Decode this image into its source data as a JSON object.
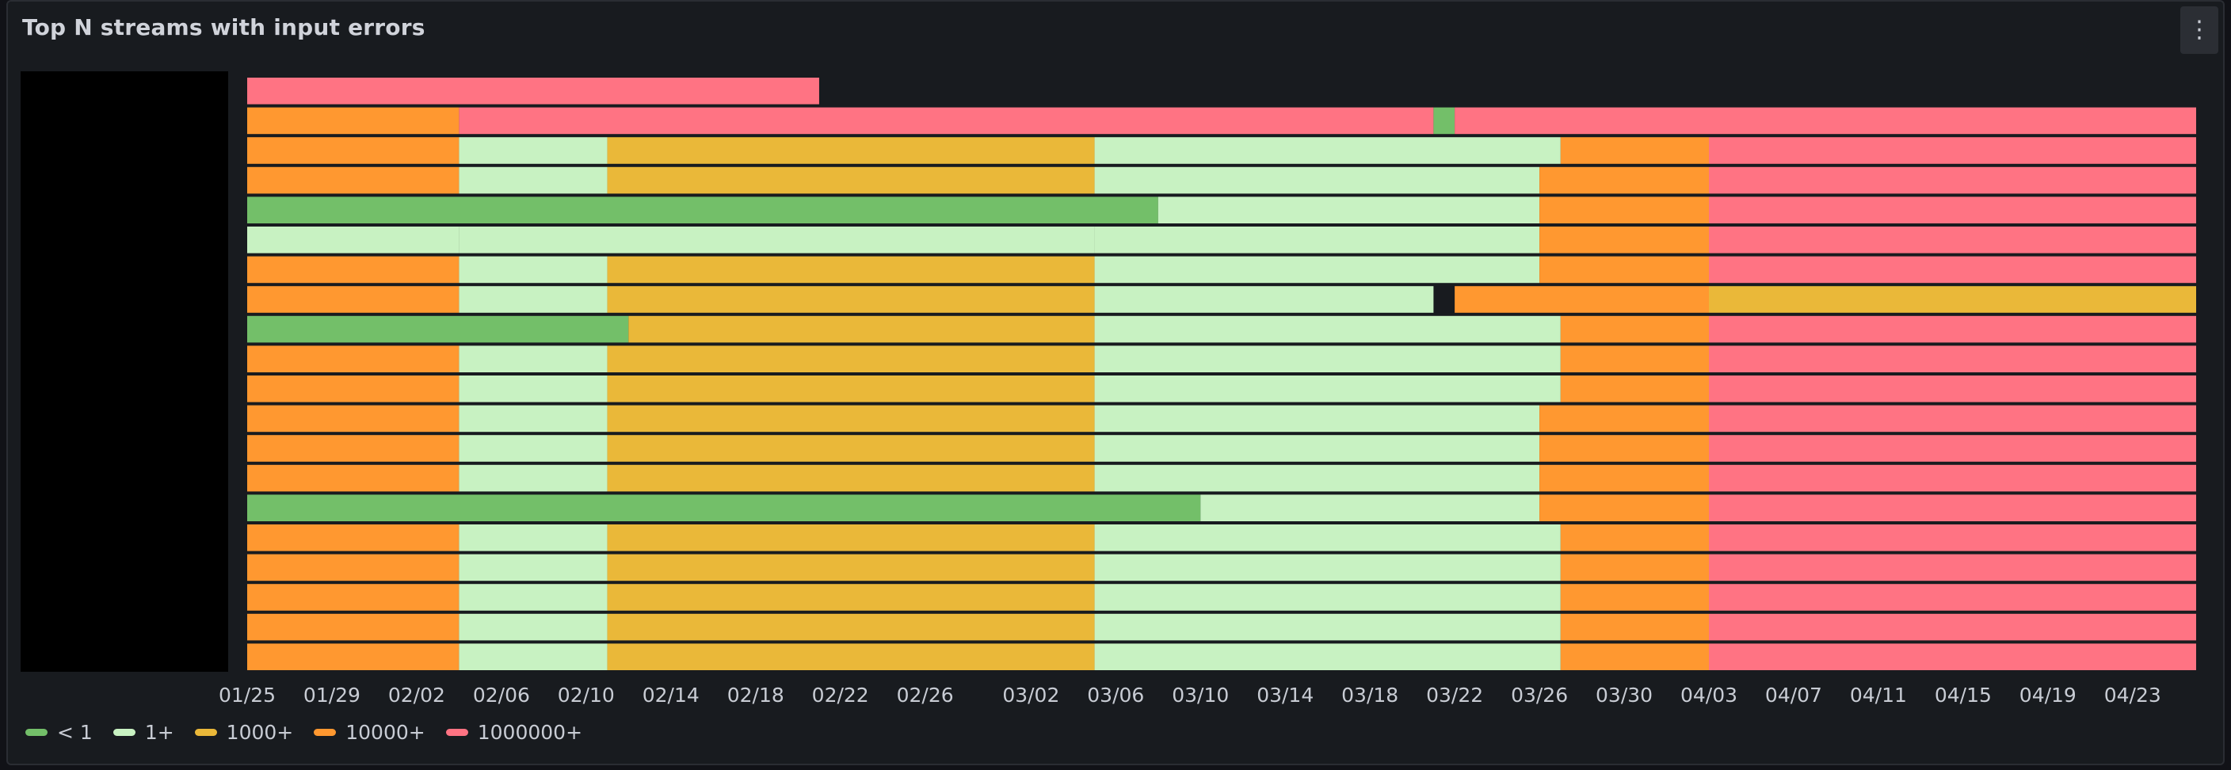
{
  "panel": {
    "title": "Top N streams with input errors",
    "menu_icon": "kebab-menu-icon"
  },
  "chart_data": {
    "type": "heatmap",
    "title": "Top N streams with input errors",
    "xlabel": "",
    "ylabel": "",
    "x_ticks": [
      "01/25",
      "01/29",
      "02/02",
      "02/06",
      "02/10",
      "02/14",
      "02/18",
      "02/22",
      "02/26",
      "03/02",
      "03/06",
      "03/10",
      "03/14",
      "03/18",
      "03/22",
      "03/26",
      "03/30",
      "04/03",
      "04/07",
      "04/11",
      "04/15",
      "04/19",
      "04/23"
    ],
    "x_range": [
      "01/25",
      "04/26"
    ],
    "row_count": 20,
    "row_labels_redacted": true,
    "legend_position": "bottom-left",
    "grid": false,
    "categories": [
      {
        "label": "< 1",
        "color": "#73bf69"
      },
      {
        "label": "1+",
        "color": "#c8f2c2"
      },
      {
        "label": "1000+",
        "color": "#eab839"
      },
      {
        "label": "10000+",
        "color": "#ff9830"
      },
      {
        "label": "1000000+",
        "color": "#ff7383"
      }
    ],
    "no_data_color": "#181b1f",
    "rows": [
      {
        "name": "",
        "segments": [
          {
            "from": "01/25",
            "to": "02/21",
            "level": 4
          }
        ]
      },
      {
        "name": "",
        "segments": [
          {
            "from": "01/25",
            "to": "02/04",
            "level": 3
          },
          {
            "from": "02/04",
            "to": "03/21",
            "level": 4
          },
          {
            "from": "03/21",
            "to": "03/22",
            "level": 0
          },
          {
            "from": "03/22",
            "to": "04/26",
            "level": 4
          }
        ]
      },
      {
        "name": "",
        "segments": [
          {
            "from": "01/25",
            "to": "02/04",
            "level": 3
          },
          {
            "from": "02/04",
            "to": "02/11",
            "level": 1
          },
          {
            "from": "02/11",
            "to": "03/05",
            "level": 2
          },
          {
            "from": "03/05",
            "to": "03/27",
            "level": 1
          },
          {
            "from": "03/27",
            "to": "04/03",
            "level": 3
          },
          {
            "from": "04/03",
            "to": "04/26",
            "level": 4
          }
        ]
      },
      {
        "name": "",
        "segments": [
          {
            "from": "01/25",
            "to": "02/04",
            "level": 3
          },
          {
            "from": "02/04",
            "to": "02/11",
            "level": 1
          },
          {
            "from": "02/11",
            "to": "03/05",
            "level": 2
          },
          {
            "from": "03/05",
            "to": "03/26",
            "level": 1
          },
          {
            "from": "03/26",
            "to": "04/03",
            "level": 3
          },
          {
            "from": "04/03",
            "to": "04/26",
            "level": 4
          }
        ]
      },
      {
        "name": "",
        "segments": [
          {
            "from": "01/25",
            "to": "03/08",
            "level": 0
          },
          {
            "from": "03/08",
            "to": "03/26",
            "level": 1
          },
          {
            "from": "03/26",
            "to": "04/03",
            "level": 3
          },
          {
            "from": "04/03",
            "to": "04/26",
            "level": 4
          }
        ]
      },
      {
        "name": "",
        "segments": [
          {
            "from": "01/25",
            "to": "02/04",
            "level": 1
          },
          {
            "from": "02/04",
            "to": "03/05",
            "level": 1
          },
          {
            "from": "03/05",
            "to": "03/26",
            "level": 1
          },
          {
            "from": "03/26",
            "to": "04/03",
            "level": 3
          },
          {
            "from": "04/03",
            "to": "04/26",
            "level": 4
          }
        ]
      },
      {
        "name": "",
        "segments": [
          {
            "from": "01/25",
            "to": "02/04",
            "level": 3
          },
          {
            "from": "02/04",
            "to": "02/11",
            "level": 1
          },
          {
            "from": "02/11",
            "to": "03/05",
            "level": 2
          },
          {
            "from": "03/05",
            "to": "03/26",
            "level": 1
          },
          {
            "from": "03/26",
            "to": "04/03",
            "level": 3
          },
          {
            "from": "04/03",
            "to": "04/26",
            "level": 4
          }
        ]
      },
      {
        "name": "",
        "segments": [
          {
            "from": "01/25",
            "to": "02/04",
            "level": 3
          },
          {
            "from": "02/04",
            "to": "02/11",
            "level": 1
          },
          {
            "from": "02/11",
            "to": "03/05",
            "level": 2
          },
          {
            "from": "03/05",
            "to": "03/21",
            "level": 1
          },
          {
            "from": "03/22",
            "to": "04/03",
            "level": 3
          },
          {
            "from": "04/03",
            "to": "04/26",
            "level": 2
          }
        ]
      },
      {
        "name": "",
        "segments": [
          {
            "from": "01/25",
            "to": "02/12",
            "level": 0
          },
          {
            "from": "02/12",
            "to": "03/05",
            "level": 2
          },
          {
            "from": "03/05",
            "to": "03/27",
            "level": 1
          },
          {
            "from": "03/27",
            "to": "04/03",
            "level": 3
          },
          {
            "from": "04/03",
            "to": "04/26",
            "level": 4
          }
        ]
      },
      {
        "name": "",
        "segments": [
          {
            "from": "01/25",
            "to": "02/04",
            "level": 3
          },
          {
            "from": "02/04",
            "to": "02/11",
            "level": 1
          },
          {
            "from": "02/11",
            "to": "03/05",
            "level": 2
          },
          {
            "from": "03/05",
            "to": "03/27",
            "level": 1
          },
          {
            "from": "03/27",
            "to": "04/03",
            "level": 3
          },
          {
            "from": "04/03",
            "to": "04/26",
            "level": 4
          }
        ]
      },
      {
        "name": "",
        "segments": [
          {
            "from": "01/25",
            "to": "02/04",
            "level": 3
          },
          {
            "from": "02/04",
            "to": "02/11",
            "level": 1
          },
          {
            "from": "02/11",
            "to": "03/05",
            "level": 2
          },
          {
            "from": "03/05",
            "to": "03/27",
            "level": 1
          },
          {
            "from": "03/27",
            "to": "04/03",
            "level": 3
          },
          {
            "from": "04/03",
            "to": "04/26",
            "level": 4
          }
        ]
      },
      {
        "name": "",
        "segments": [
          {
            "from": "01/25",
            "to": "02/04",
            "level": 3
          },
          {
            "from": "02/04",
            "to": "02/11",
            "level": 1
          },
          {
            "from": "02/11",
            "to": "03/05",
            "level": 2
          },
          {
            "from": "03/05",
            "to": "03/26",
            "level": 1
          },
          {
            "from": "03/26",
            "to": "04/03",
            "level": 3
          },
          {
            "from": "04/03",
            "to": "04/26",
            "level": 4
          }
        ]
      },
      {
        "name": "",
        "segments": [
          {
            "from": "01/25",
            "to": "02/04",
            "level": 3
          },
          {
            "from": "02/04",
            "to": "02/11",
            "level": 1
          },
          {
            "from": "02/11",
            "to": "03/05",
            "level": 2
          },
          {
            "from": "03/05",
            "to": "03/26",
            "level": 1
          },
          {
            "from": "03/26",
            "to": "04/03",
            "level": 3
          },
          {
            "from": "04/03",
            "to": "04/26",
            "level": 4
          }
        ]
      },
      {
        "name": "",
        "segments": [
          {
            "from": "01/25",
            "to": "02/04",
            "level": 3
          },
          {
            "from": "02/04",
            "to": "02/11",
            "level": 1
          },
          {
            "from": "02/11",
            "to": "03/05",
            "level": 2
          },
          {
            "from": "03/05",
            "to": "03/26",
            "level": 1
          },
          {
            "from": "03/26",
            "to": "04/03",
            "level": 3
          },
          {
            "from": "04/03",
            "to": "04/26",
            "level": 4
          }
        ]
      },
      {
        "name": "",
        "segments": [
          {
            "from": "01/25",
            "to": "03/10",
            "level": 0
          },
          {
            "from": "03/10",
            "to": "03/26",
            "level": 1
          },
          {
            "from": "03/26",
            "to": "04/03",
            "level": 3
          },
          {
            "from": "04/03",
            "to": "04/26",
            "level": 4
          }
        ]
      },
      {
        "name": "",
        "segments": [
          {
            "from": "01/25",
            "to": "02/04",
            "level": 3
          },
          {
            "from": "02/04",
            "to": "02/11",
            "level": 1
          },
          {
            "from": "02/11",
            "to": "03/05",
            "level": 2
          },
          {
            "from": "03/05",
            "to": "03/27",
            "level": 1
          },
          {
            "from": "03/27",
            "to": "04/03",
            "level": 3
          },
          {
            "from": "04/03",
            "to": "04/26",
            "level": 4
          }
        ]
      },
      {
        "name": "",
        "segments": [
          {
            "from": "01/25",
            "to": "02/04",
            "level": 3
          },
          {
            "from": "02/04",
            "to": "02/11",
            "level": 1
          },
          {
            "from": "02/11",
            "to": "03/05",
            "level": 2
          },
          {
            "from": "03/05",
            "to": "03/27",
            "level": 1
          },
          {
            "from": "03/27",
            "to": "04/03",
            "level": 3
          },
          {
            "from": "04/03",
            "to": "04/26",
            "level": 4
          }
        ]
      },
      {
        "name": "",
        "segments": [
          {
            "from": "01/25",
            "to": "02/04",
            "level": 3
          },
          {
            "from": "02/04",
            "to": "02/11",
            "level": 1
          },
          {
            "from": "02/11",
            "to": "03/05",
            "level": 2
          },
          {
            "from": "03/05",
            "to": "03/27",
            "level": 1
          },
          {
            "from": "03/27",
            "to": "04/03",
            "level": 3
          },
          {
            "from": "04/03",
            "to": "04/26",
            "level": 4
          }
        ]
      },
      {
        "name": "",
        "segments": [
          {
            "from": "01/25",
            "to": "02/04",
            "level": 3
          },
          {
            "from": "02/04",
            "to": "02/11",
            "level": 1
          },
          {
            "from": "02/11",
            "to": "03/05",
            "level": 2
          },
          {
            "from": "03/05",
            "to": "03/27",
            "level": 1
          },
          {
            "from": "03/27",
            "to": "04/03",
            "level": 3
          },
          {
            "from": "04/03",
            "to": "04/26",
            "level": 4
          }
        ]
      },
      {
        "name": "",
        "segments": [
          {
            "from": "01/25",
            "to": "02/04",
            "level": 3
          },
          {
            "from": "02/04",
            "to": "02/11",
            "level": 1
          },
          {
            "from": "02/11",
            "to": "03/05",
            "level": 2
          },
          {
            "from": "03/05",
            "to": "03/27",
            "level": 1
          },
          {
            "from": "03/27",
            "to": "04/03",
            "level": 3
          },
          {
            "from": "04/03",
            "to": "04/26",
            "level": 4
          }
        ]
      }
    ]
  }
}
